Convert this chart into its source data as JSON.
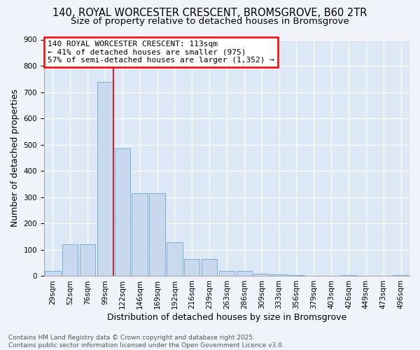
{
  "title_line1": "140, ROYAL WORCESTER CRESCENT, BROMSGROVE, B60 2TR",
  "title_line2": "Size of property relative to detached houses in Bromsgrove",
  "xlabel": "Distribution of detached houses by size in Bromsgrove",
  "ylabel": "Number of detached properties",
  "bar_color": "#c8d8ee",
  "bar_edge_color": "#7aaed4",
  "bin_labels": [
    "29sqm",
    "52sqm",
    "76sqm",
    "99sqm",
    "122sqm",
    "146sqm",
    "169sqm",
    "192sqm",
    "216sqm",
    "239sqm",
    "263sqm",
    "286sqm",
    "309sqm",
    "333sqm",
    "356sqm",
    "379sqm",
    "403sqm",
    "426sqm",
    "449sqm",
    "473sqm",
    "496sqm"
  ],
  "bar_values": [
    20,
    122,
    122,
    740,
    485,
    315,
    315,
    130,
    65,
    65,
    20,
    20,
    10,
    7,
    5,
    0,
    0,
    5,
    0,
    0,
    5
  ],
  "ylim": [
    0,
    900
  ],
  "yticks": [
    0,
    100,
    200,
    300,
    400,
    500,
    600,
    700,
    800,
    900
  ],
  "annotation_text": "140 ROYAL WORCESTER CRESCENT: 113sqm\n← 41% of detached houses are smaller (975)\n57% of semi-detached houses are larger (1,352) →",
  "vline_x": 3.5,
  "vline_color": "#cc0000",
  "background_color": "#dce8f5",
  "fig_background_color": "#f0f4fa",
  "footer_text": "Contains HM Land Registry data © Crown copyright and database right 2025.\nContains public sector information licensed under the Open Government Licence v3.0.",
  "title_fontsize": 10.5,
  "subtitle_fontsize": 9.5,
  "axis_label_fontsize": 9,
  "tick_fontsize": 7.5,
  "annotation_fontsize": 8
}
